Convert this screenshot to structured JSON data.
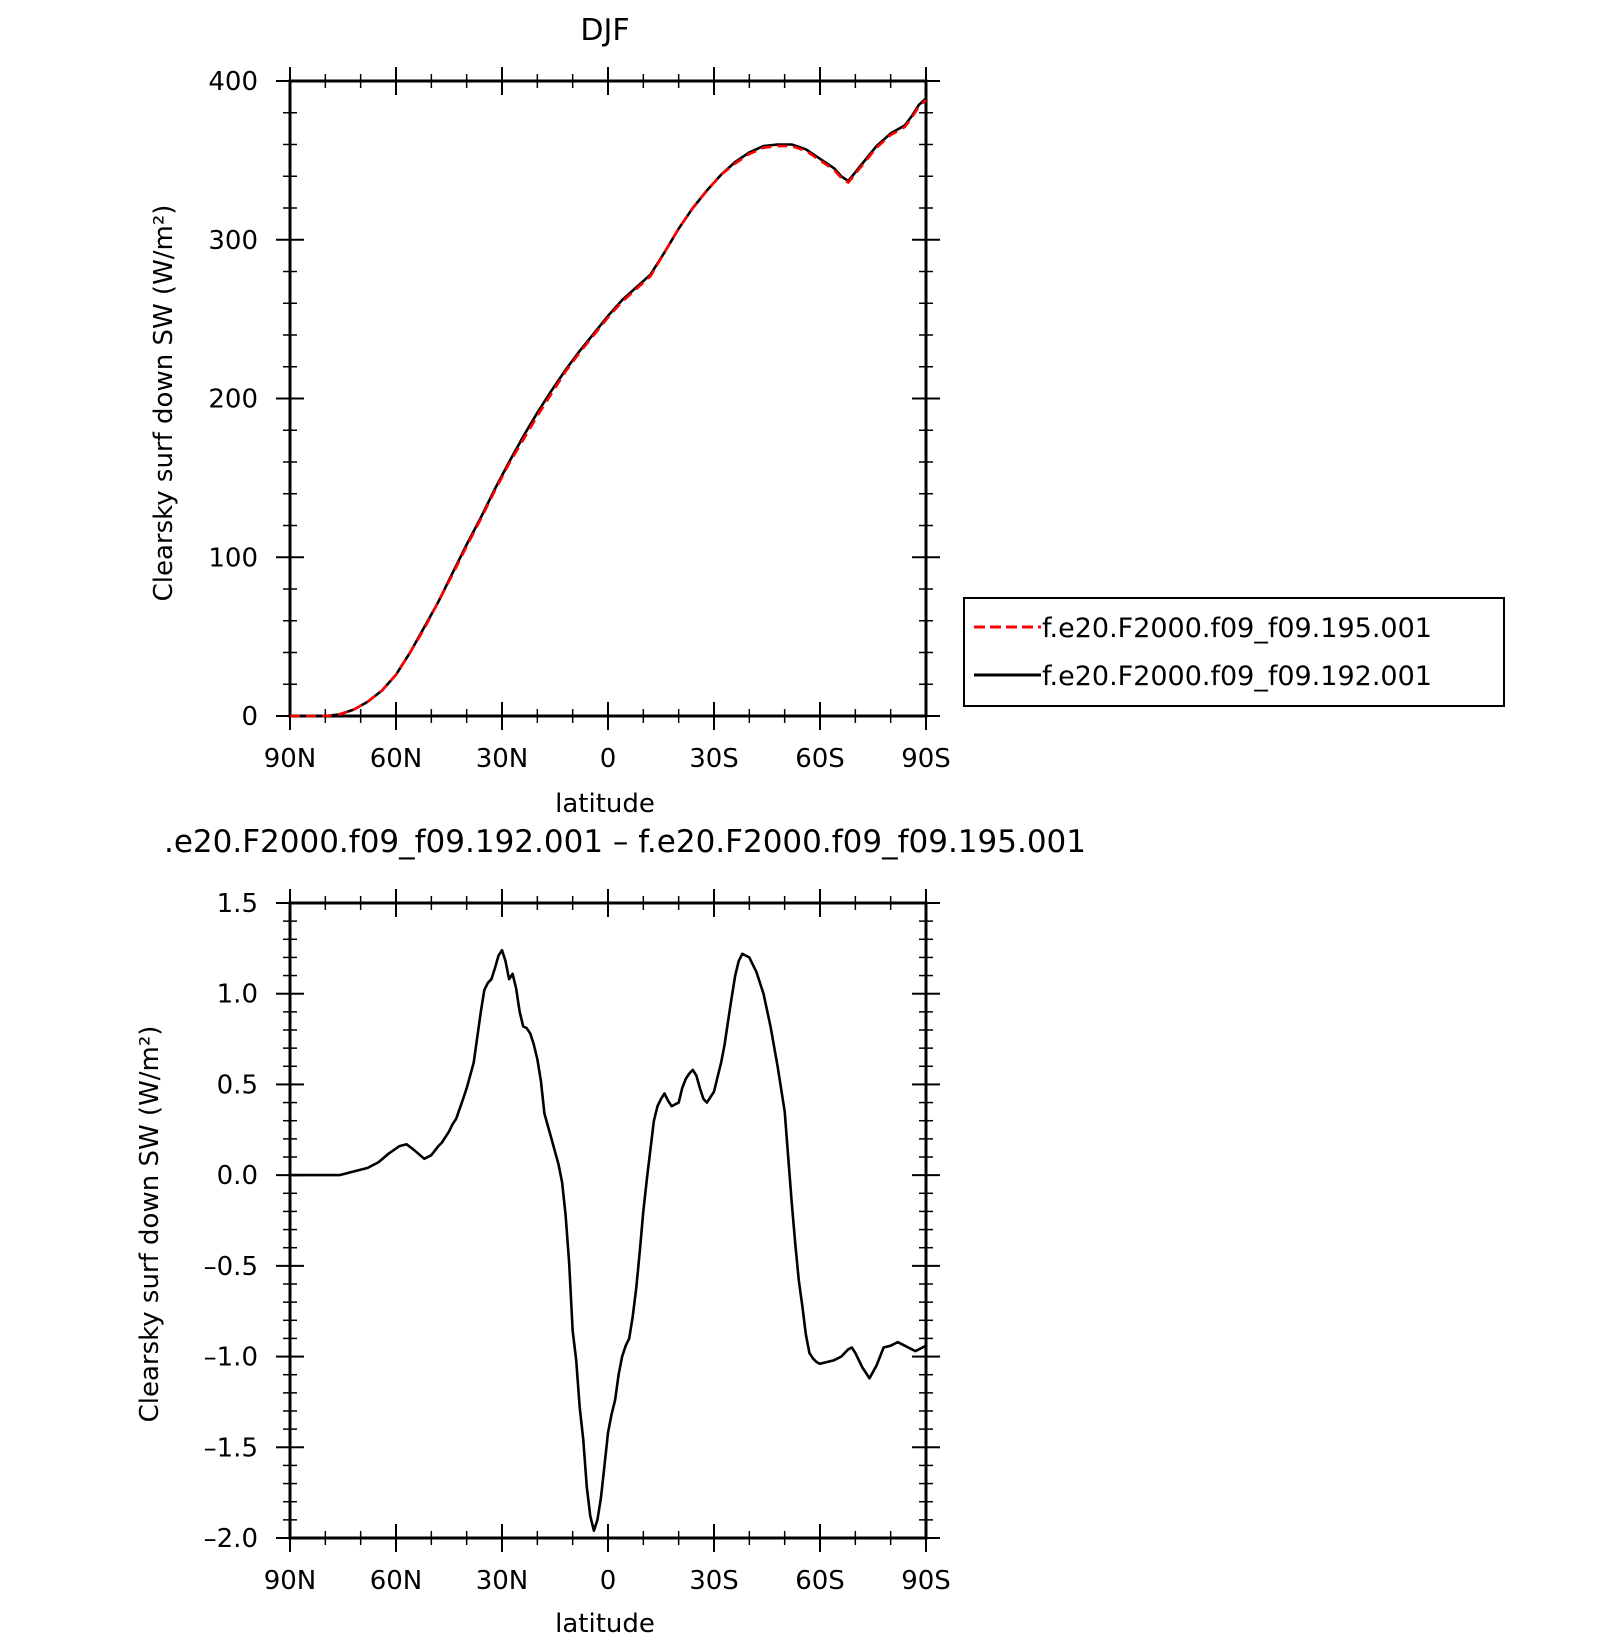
{
  "chart_data": [
    {
      "type": "line",
      "title": "DJF",
      "xlabel": "latitude",
      "ylabel": "Clearsky surf down SW (W/m²)",
      "xlim": [
        90,
        -90
      ],
      "ylim": [
        0,
        400
      ],
      "x_ticks": [
        {
          "value": 90,
          "label": "90N"
        },
        {
          "value": 60,
          "label": "60N"
        },
        {
          "value": 30,
          "label": "30N"
        },
        {
          "value": 0,
          "label": "0"
        },
        {
          "value": -30,
          "label": "30S"
        },
        {
          "value": -60,
          "label": "60S"
        },
        {
          "value": -90,
          "label": "90S"
        }
      ],
      "y_ticks": [
        {
          "value": 0,
          "label": "0"
        },
        {
          "value": 100,
          "label": "100"
        },
        {
          "value": 200,
          "label": "200"
        },
        {
          "value": 300,
          "label": "300"
        },
        {
          "value": 400,
          "label": "400"
        }
      ],
      "legend": {
        "placement": "right",
        "entries": [
          {
            "label": "f.e20.F2000.f09_f09.195.001",
            "color": "#ff0000",
            "dash": "dashed"
          },
          {
            "label": "f.e20.F2000.f09_f09.192.001",
            "color": "#000000",
            "dash": "solid"
          }
        ]
      },
      "series": [
        {
          "name": "f.e20.F2000.f09_f09.195.001",
          "color": "#ff0000",
          "dash": "dashed",
          "x": [
            90,
            85,
            80,
            76,
            72,
            68,
            64,
            60,
            56,
            52,
            48,
            44,
            40,
            36,
            32,
            28,
            24,
            20,
            16,
            12,
            8,
            4,
            0,
            -4,
            -8,
            -12,
            -16,
            -20,
            -24,
            -28,
            -32,
            -36,
            -40,
            -44,
            -48,
            -52,
            -56,
            -60,
            -64,
            -66,
            -68,
            -72,
            -76,
            -80,
            -84,
            -86,
            -88,
            -90
          ],
          "y": [
            0,
            0,
            0,
            1,
            4,
            9,
            16,
            26,
            40,
            55,
            72,
            89,
            107,
            124,
            142,
            159,
            174,
            189,
            203,
            217,
            229,
            240,
            251,
            261,
            269,
            277,
            292,
            307,
            320,
            331,
            341,
            348,
            354,
            358,
            359,
            359,
            356,
            350,
            344,
            339,
            336,
            347,
            358,
            366,
            371,
            377,
            384,
            388
          ]
        },
        {
          "name": "f.e20.F2000.f09_f09.192.001",
          "color": "#000000",
          "dash": "solid",
          "x": [
            90,
            85,
            80,
            76,
            72,
            68,
            64,
            60,
            56,
            52,
            48,
            44,
            40,
            36,
            32,
            28,
            24,
            20,
            16,
            12,
            8,
            4,
            0,
            -4,
            -8,
            -12,
            -16,
            -20,
            -24,
            -28,
            -32,
            -36,
            -40,
            -44,
            -48,
            -52,
            -56,
            -60,
            -64,
            -66,
            -68,
            -72,
            -76,
            -80,
            -84,
            -86,
            -88,
            -90
          ],
          "y": [
            0,
            0,
            0,
            1,
            4,
            9,
            16,
            26,
            40,
            56,
            72,
            90,
            108,
            125,
            143,
            160,
            176,
            191,
            205,
            218,
            230,
            241,
            252,
            262,
            270,
            278,
            292,
            307,
            320,
            331,
            341,
            349,
            355,
            359,
            360,
            360,
            357,
            351,
            345,
            340,
            337,
            348,
            359,
            367,
            372,
            378,
            385,
            389
          ]
        }
      ]
    },
    {
      "type": "line",
      "title": ".e20.F2000.f09_f09.192.001 – f.e20.F2000.f09_f09.195.001",
      "xlabel": "latitude",
      "ylabel": "Clearsky surf down SW (W/m²)",
      "xlim": [
        90,
        -90
      ],
      "ylim": [
        -2.0,
        1.5
      ],
      "x_ticks": [
        {
          "value": 90,
          "label": "90N"
        },
        {
          "value": 60,
          "label": "60N"
        },
        {
          "value": 30,
          "label": "30N"
        },
        {
          "value": 0,
          "label": "0"
        },
        {
          "value": -30,
          "label": "30S"
        },
        {
          "value": -60,
          "label": "60S"
        },
        {
          "value": -90,
          "label": "90S"
        }
      ],
      "y_ticks": [
        {
          "value": -2.0,
          "label": "–2.0"
        },
        {
          "value": -1.5,
          "label": "–1.5"
        },
        {
          "value": -1.0,
          "label": "–1.0"
        },
        {
          "value": -0.5,
          "label": "–0.5"
        },
        {
          "value": 0.0,
          "label": "0.0"
        },
        {
          "value": 0.5,
          "label": "0.5"
        },
        {
          "value": 1.0,
          "label": "1.0"
        },
        {
          "value": 1.5,
          "label": "1.5"
        }
      ],
      "series": [
        {
          "color": "#000000",
          "dash": "solid",
          "x": [
            90,
            85,
            80,
            76,
            72,
            68,
            65,
            62,
            59,
            57,
            55,
            52,
            50,
            48,
            47,
            45,
            44,
            43,
            41,
            40,
            38,
            36,
            35,
            34,
            33,
            32,
            31,
            30,
            29,
            28,
            27,
            26,
            25,
            24,
            23,
            22,
            21,
            20,
            19,
            18,
            16,
            14,
            13,
            12,
            11,
            10,
            9,
            8,
            7,
            6,
            5,
            4,
            3,
            2,
            1,
            0,
            -1,
            -2,
            -3,
            -4,
            -5,
            -6,
            -7,
            -8,
            -9,
            -10,
            -11,
            -12,
            -13,
            -14,
            -15,
            -16,
            -17,
            -18,
            -19,
            -20,
            -21,
            -22,
            -23,
            -24,
            -25,
            -26,
            -27,
            -28,
            -29,
            -30,
            -31,
            -32,
            -33,
            -34,
            -35,
            -36,
            -37,
            -38,
            -39,
            -40,
            -42,
            -44,
            -46,
            -48,
            -50,
            -51,
            -52,
            -53,
            -54,
            -55,
            -56,
            -57,
            -58,
            -59,
            -60,
            -62,
            -64,
            -66,
            -68,
            -69,
            -70,
            -72,
            -74,
            -76,
            -78,
            -80,
            -81,
            -82,
            -83,
            -84,
            -85,
            -86,
            -87,
            -88,
            -89,
            -90
          ],
          "y": [
            0.0,
            0.0,
            0.0,
            0.0,
            0.02,
            0.04,
            0.07,
            0.12,
            0.16,
            0.17,
            0.14,
            0.09,
            0.11,
            0.16,
            0.18,
            0.24,
            0.28,
            0.31,
            0.42,
            0.48,
            0.62,
            0.9,
            1.02,
            1.06,
            1.08,
            1.14,
            1.21,
            1.24,
            1.18,
            1.08,
            1.11,
            1.03,
            0.9,
            0.82,
            0.81,
            0.78,
            0.72,
            0.64,
            0.52,
            0.34,
            0.2,
            0.06,
            -0.04,
            -0.22,
            -0.48,
            -0.86,
            -1.02,
            -1.28,
            -1.46,
            -1.72,
            -1.88,
            -1.96,
            -1.9,
            -1.78,
            -1.6,
            -1.42,
            -1.32,
            -1.24,
            -1.1,
            -1.0,
            -0.94,
            -0.9,
            -0.78,
            -0.62,
            -0.42,
            -0.2,
            -0.02,
            0.14,
            0.3,
            0.38,
            0.42,
            0.45,
            0.41,
            0.38,
            0.39,
            0.4,
            0.48,
            0.53,
            0.56,
            0.58,
            0.55,
            0.48,
            0.42,
            0.4,
            0.43,
            0.46,
            0.54,
            0.62,
            0.72,
            0.85,
            0.98,
            1.1,
            1.18,
            1.22,
            1.21,
            1.2,
            1.12,
            1.0,
            0.82,
            0.6,
            0.35,
            0.1,
            -0.15,
            -0.38,
            -0.58,
            -0.72,
            -0.88,
            -0.98,
            -1.01,
            -1.03,
            -1.04,
            -1.03,
            -1.02,
            -1.0,
            -0.96,
            -0.95,
            -0.98,
            -1.06,
            -1.12,
            -1.05,
            -0.95,
            -0.94,
            -0.93,
            -0.92,
            -0.93,
            -0.94,
            -0.95,
            -0.96,
            -0.97,
            -0.96,
            -0.95,
            -0.94
          ]
        }
      ]
    }
  ]
}
